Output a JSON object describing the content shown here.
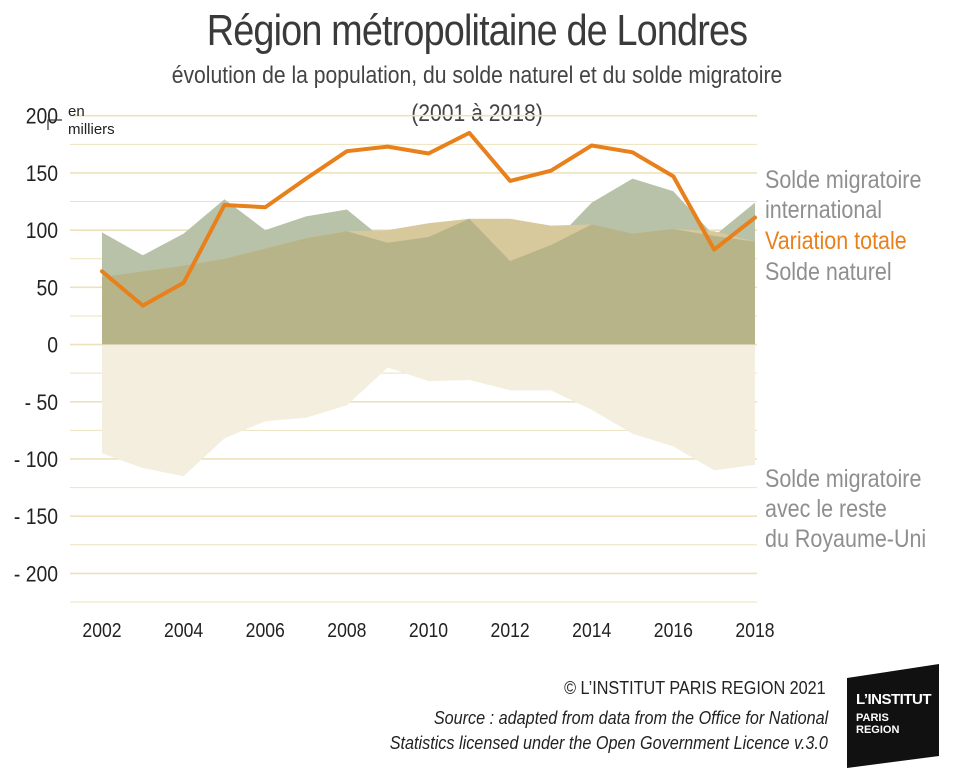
{
  "title": "Région métropolitaine de Londres",
  "subtitle": "évolution de la population, du solde naturel et du solde migratoire",
  "subtitle_years": "(2001 à 2018)",
  "copyright": "© L’INSTITUT PARIS REGION 2021",
  "source_line1": "Source : adapted from data from the Office for National",
  "source_line2": "Statistics licensed under the Open Government Licence v.3.0",
  "logo": {
    "line1": "L’INSTITUT",
    "line2": "PARIS",
    "line3": "REGION"
  },
  "chart_data": {
    "type": "area",
    "unit_label_line1": "en",
    "unit_label_line2": "milliers",
    "x": [
      2002,
      2003,
      2004,
      2005,
      2006,
      2007,
      2008,
      2009,
      2010,
      2011,
      2012,
      2013,
      2014,
      2015,
      2016,
      2017,
      2018
    ],
    "xticks": [
      2002,
      2004,
      2006,
      2008,
      2010,
      2012,
      2014,
      2016,
      2018
    ],
    "xtick_labels": [
      "2002",
      "2004",
      "2006",
      "2008",
      "2010",
      "2012",
      "2014",
      "2016",
      "2018"
    ],
    "yticks": [
      200,
      150,
      100,
      50,
      0,
      -50,
      -100,
      -150,
      -200
    ],
    "ytick_labels": [
      "200",
      "150",
      "100",
      "50",
      "0",
      "- 50",
      "- 100",
      "- 150",
      "- 200"
    ],
    "ylim": [
      -225,
      205
    ],
    "grid": true,
    "series": [
      {
        "name": "Solde migratoire international",
        "label_lines": [
          "Solde migratoire",
          "international"
        ],
        "color": "#b7c2a8",
        "values": [
          98,
          78,
          97,
          127,
          100,
          112,
          118,
          89,
          94,
          110,
          73,
          87,
          124,
          145,
          134,
          95,
          124
        ]
      },
      {
        "name": "Solde naturel",
        "label_lines": [
          "Solde naturel"
        ],
        "color": "#d8c99c",
        "values": [
          59,
          64,
          69,
          75,
          84,
          93,
          99,
          100,
          106,
          110,
          110,
          104,
          105,
          97,
          101,
          99,
          90
        ]
      },
      {
        "name": "Variation totale",
        "label_lines": [
          "Variation totale"
        ],
        "color": "#e8801c",
        "values": [
          64,
          34,
          54,
          122,
          120,
          145,
          169,
          173,
          167,
          185,
          143,
          152,
          174,
          168,
          147,
          83,
          111
        ]
      },
      {
        "name": "Solde migratoire avec le reste du Royaume-Uni",
        "label_lines": [
          "Solde migratoire",
          "avec le reste",
          "du Royaume-Uni"
        ],
        "color": "#f3eedd",
        "values": [
          -95,
          -108,
          -115,
          -82,
          -67,
          -64,
          -53,
          -20,
          -32,
          -31,
          -40,
          -40,
          -57,
          -78,
          -89,
          -110,
          -105
        ]
      }
    ],
    "colors": {
      "overlap": "#b8b48a",
      "grid": "#ede2bd",
      "label_gray": "#8f8f8f",
      "total_orange": "#e8801c"
    }
  }
}
